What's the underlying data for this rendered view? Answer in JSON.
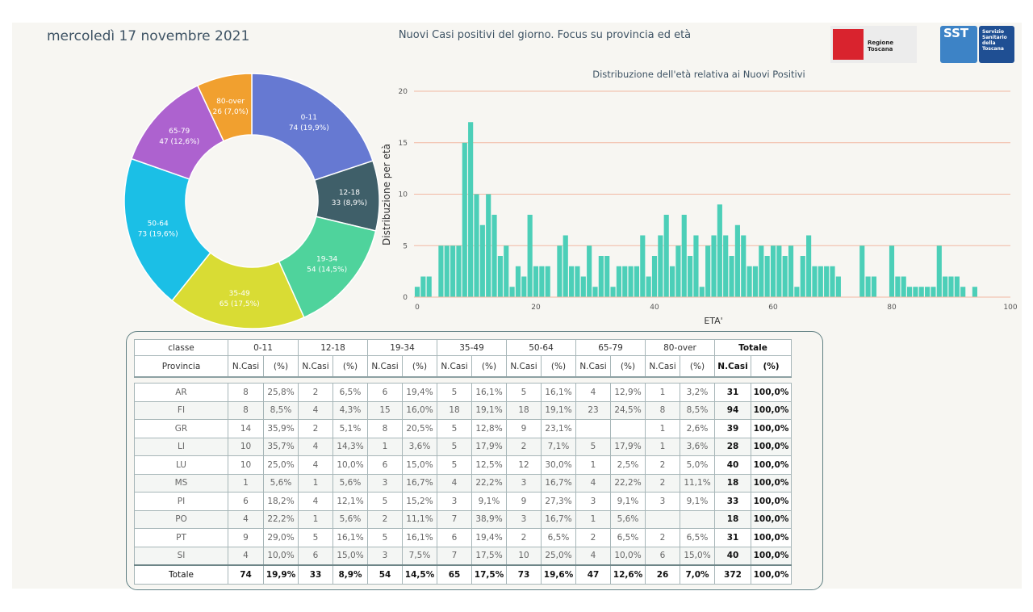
{
  "header": {
    "date": "mercoledì 17 novembre 2021",
    "title": "Nuovi Casi positivi del giorno. Focus su provincia ed età"
  },
  "logos": {
    "regione_label": "Regione Toscana",
    "sst_label": "SST",
    "sst_text": "Servizio\nSanitario\ndella\nToscana"
  },
  "chart_data": [
    {
      "type": "pie",
      "variant": "donut",
      "slices": [
        {
          "label": "0-11",
          "value": 74,
          "pct": "19,9%",
          "color": "#6679d2"
        },
        {
          "label": "12-18",
          "value": 33,
          "pct": "8,9%",
          "color": "#3f5f69"
        },
        {
          "label": "19-34",
          "value": 54,
          "pct": "14,5%",
          "color": "#4fd39c"
        },
        {
          "label": "35-49",
          "value": 65,
          "pct": "17,5%",
          "color": "#d9dc34"
        },
        {
          "label": "50-64",
          "value": 73,
          "pct": "19,6%",
          "color": "#1bbfe6"
        },
        {
          "label": "65-79",
          "value": 47,
          "pct": "12,6%",
          "color": "#ad62cf"
        },
        {
          "label": "80-over",
          "value": 26,
          "pct": "7,0%",
          "color": "#f1a02f"
        }
      ]
    },
    {
      "type": "bar",
      "title": "Distribuzione dell'età relativa ai Nuovi Positivi",
      "xlabel": "ETA'",
      "ylabel": "Distribuzione per età",
      "xlim": [
        0,
        100
      ],
      "ylim": [
        0,
        20
      ],
      "xticks": [
        0,
        20,
        40,
        60,
        80,
        100
      ],
      "yticks": [
        0,
        5,
        10,
        15,
        20
      ],
      "color": "#4ccfb8",
      "x": [
        0,
        1,
        2,
        3,
        4,
        5,
        6,
        7,
        8,
        9,
        10,
        11,
        12,
        13,
        14,
        15,
        16,
        17,
        18,
        19,
        20,
        21,
        22,
        23,
        24,
        25,
        26,
        27,
        28,
        29,
        30,
        31,
        32,
        33,
        34,
        35,
        36,
        37,
        38,
        39,
        40,
        41,
        42,
        43,
        44,
        45,
        46,
        47,
        48,
        49,
        50,
        51,
        52,
        53,
        54,
        55,
        56,
        57,
        58,
        59,
        60,
        61,
        62,
        63,
        64,
        65,
        66,
        67,
        68,
        69,
        70,
        71,
        72,
        73,
        74,
        75,
        76,
        77,
        78,
        79,
        80,
        81,
        82,
        83,
        84,
        85,
        86,
        87,
        88,
        89,
        90,
        91,
        92,
        93,
        94
      ],
      "values": [
        1,
        2,
        2,
        0,
        5,
        5,
        5,
        5,
        15,
        17,
        10,
        7,
        10,
        8,
        4,
        5,
        1,
        3,
        2,
        8,
        3,
        3,
        3,
        0,
        5,
        6,
        3,
        3,
        2,
        5,
        1,
        4,
        4,
        1,
        3,
        3,
        3,
        3,
        6,
        2,
        4,
        6,
        8,
        3,
        5,
        8,
        4,
        6,
        1,
        5,
        6,
        9,
        6,
        4,
        7,
        6,
        3,
        3,
        5,
        4,
        5,
        5,
        4,
        5,
        1,
        4,
        6,
        3,
        3,
        3,
        3,
        2,
        0,
        0,
        0,
        5,
        2,
        2,
        0,
        0,
        5,
        2,
        2,
        1,
        1,
        1,
        1,
        1,
        5,
        2,
        2,
        2,
        1,
        0,
        1
      ]
    }
  ],
  "table": {
    "corner": "classe",
    "province_header": "Provincia",
    "groups": [
      "0-11",
      "12-18",
      "19-34",
      "35-49",
      "50-64",
      "65-79",
      "80-over",
      "Totale"
    ],
    "sub_n": "N.Casi",
    "sub_pct": "(%)",
    "rows": [
      {
        "prov": "AR",
        "cells": [
          "8",
          "25,8%",
          "2",
          "6,5%",
          "6",
          "19,4%",
          "5",
          "16,1%",
          "5",
          "16,1%",
          "4",
          "12,9%",
          "1",
          "3,2%"
        ],
        "tot": "31",
        "tot_pct": "100,0%"
      },
      {
        "prov": "FI",
        "cells": [
          "8",
          "8,5%",
          "4",
          "4,3%",
          "15",
          "16,0%",
          "18",
          "19,1%",
          "18",
          "19,1%",
          "23",
          "24,5%",
          "8",
          "8,5%"
        ],
        "tot": "94",
        "tot_pct": "100,0%"
      },
      {
        "prov": "GR",
        "cells": [
          "14",
          "35,9%",
          "2",
          "5,1%",
          "8",
          "20,5%",
          "5",
          "12,8%",
          "9",
          "23,1%",
          "",
          "",
          "1",
          "2,6%"
        ],
        "tot": "39",
        "tot_pct": "100,0%"
      },
      {
        "prov": "LI",
        "cells": [
          "10",
          "35,7%",
          "4",
          "14,3%",
          "1",
          "3,6%",
          "5",
          "17,9%",
          "2",
          "7,1%",
          "5",
          "17,9%",
          "1",
          "3,6%"
        ],
        "tot": "28",
        "tot_pct": "100,0%"
      },
      {
        "prov": "LU",
        "cells": [
          "10",
          "25,0%",
          "4",
          "10,0%",
          "6",
          "15,0%",
          "5",
          "12,5%",
          "12",
          "30,0%",
          "1",
          "2,5%",
          "2",
          "5,0%"
        ],
        "tot": "40",
        "tot_pct": "100,0%"
      },
      {
        "prov": "MS",
        "cells": [
          "1",
          "5,6%",
          "1",
          "5,6%",
          "3",
          "16,7%",
          "4",
          "22,2%",
          "3",
          "16,7%",
          "4",
          "22,2%",
          "2",
          "11,1%"
        ],
        "tot": "18",
        "tot_pct": "100,0%"
      },
      {
        "prov": "PI",
        "cells": [
          "6",
          "18,2%",
          "4",
          "12,1%",
          "5",
          "15,2%",
          "3",
          "9,1%",
          "9",
          "27,3%",
          "3",
          "9,1%",
          "3",
          "9,1%"
        ],
        "tot": "33",
        "tot_pct": "100,0%"
      },
      {
        "prov": "PO",
        "cells": [
          "4",
          "22,2%",
          "1",
          "5,6%",
          "2",
          "11,1%",
          "7",
          "38,9%",
          "3",
          "16,7%",
          "1",
          "5,6%",
          "",
          ""
        ],
        "tot": "18",
        "tot_pct": "100,0%"
      },
      {
        "prov": "PT",
        "cells": [
          "9",
          "29,0%",
          "5",
          "16,1%",
          "5",
          "16,1%",
          "6",
          "19,4%",
          "2",
          "6,5%",
          "2",
          "6,5%",
          "2",
          "6,5%"
        ],
        "tot": "31",
        "tot_pct": "100,0%"
      },
      {
        "prov": "SI",
        "cells": [
          "4",
          "10,0%",
          "6",
          "15,0%",
          "3",
          "7,5%",
          "7",
          "17,5%",
          "10",
          "25,0%",
          "4",
          "10,0%",
          "6",
          "15,0%"
        ],
        "tot": "40",
        "tot_pct": "100,0%"
      }
    ],
    "total_row": {
      "label": "Totale",
      "cells": [
        "74",
        "19,9%",
        "33",
        "8,9%",
        "54",
        "14,5%",
        "65",
        "17,5%",
        "73",
        "19,6%",
        "47",
        "12,6%",
        "26",
        "7,0%"
      ],
      "tot": "372",
      "tot_pct": "100,0%"
    }
  }
}
